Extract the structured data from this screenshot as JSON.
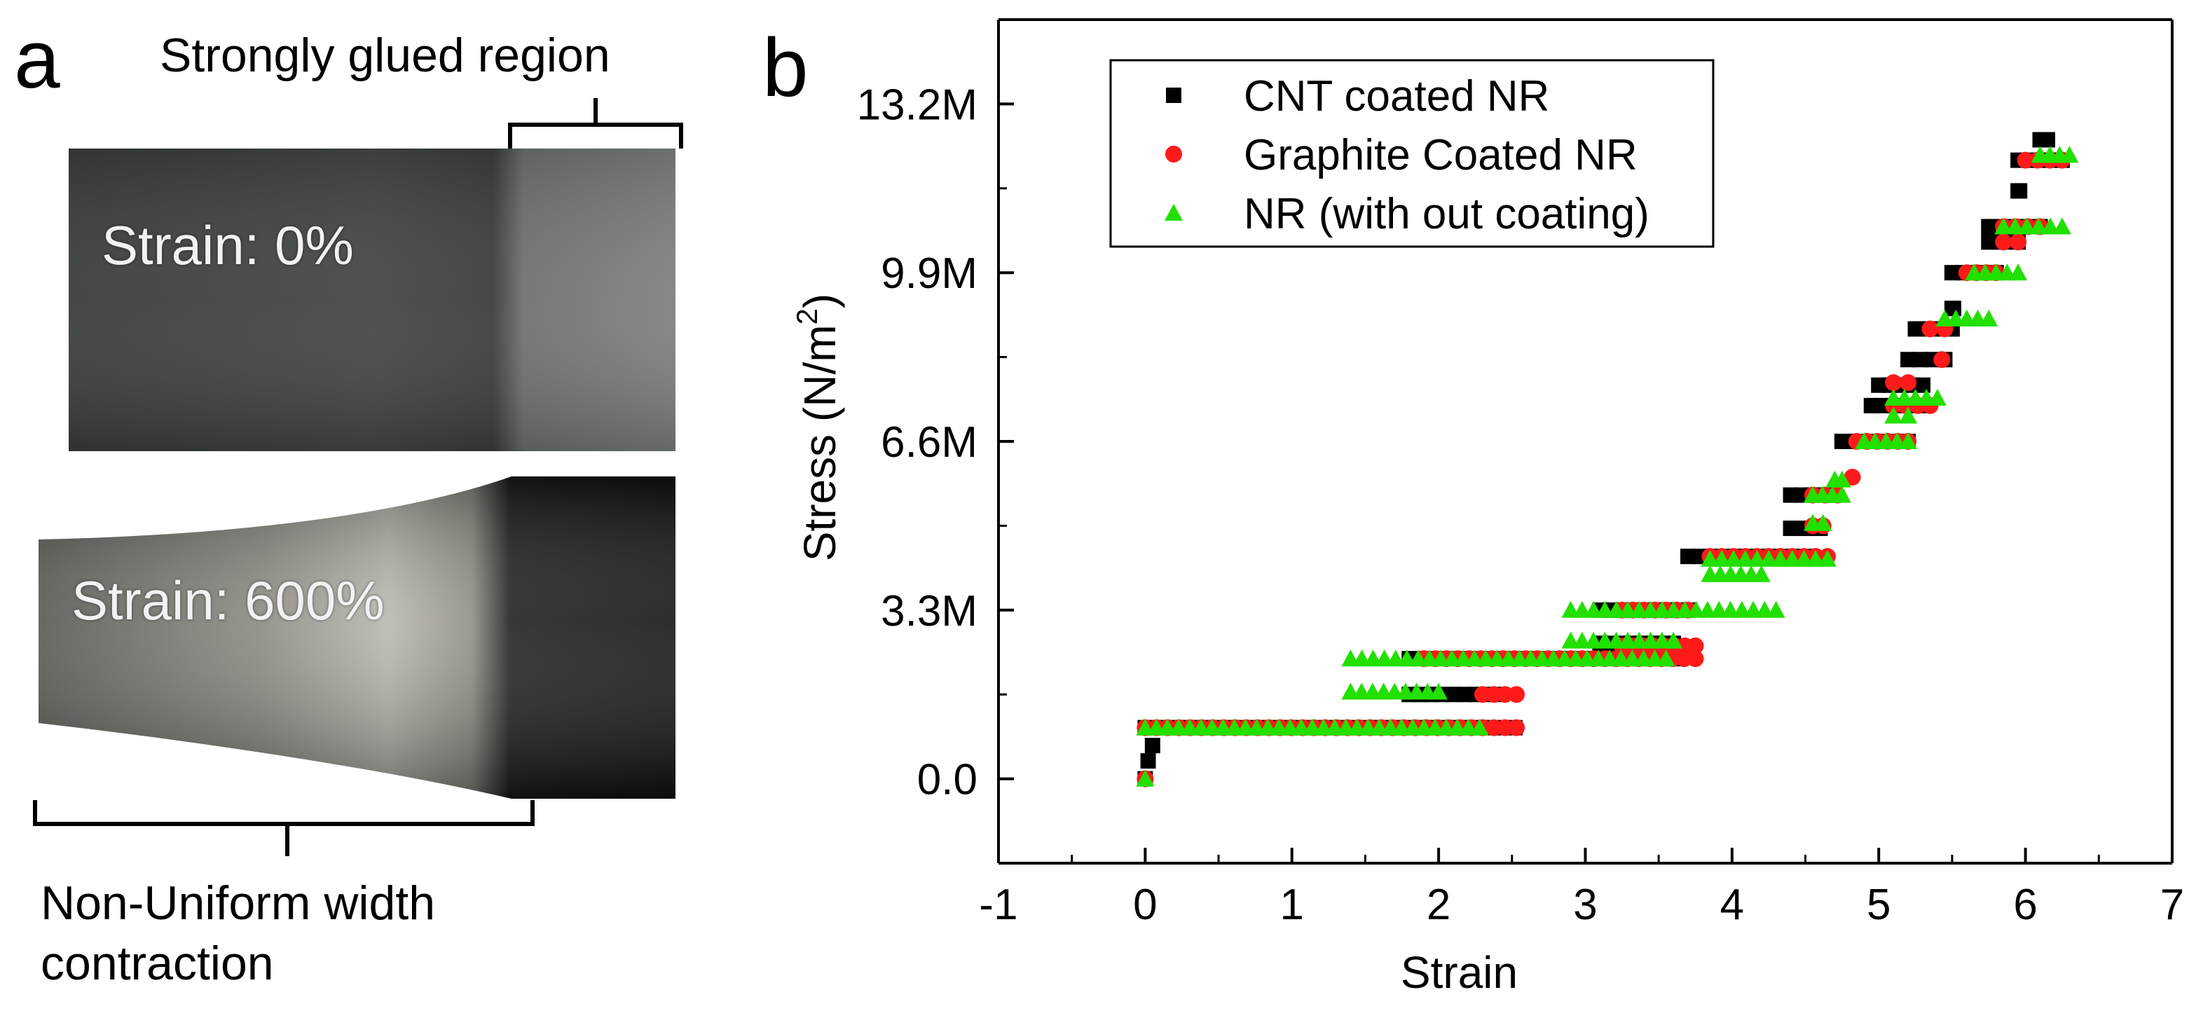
{
  "panel_a": {
    "letter": "a",
    "glued_label": "Strongly glued region",
    "strain_top": "Strain: 0%",
    "strain_bottom": "Strain: 600%",
    "caption_line1": "Non-Uniform width",
    "caption_line2": "contraction"
  },
  "panel_b": {
    "letter": "b"
  },
  "colors": {
    "cnt": "#000000",
    "graphite": "#ff1a1a",
    "nr": "#22e000",
    "axis": "#000000"
  },
  "chart_data": {
    "type": "scatter",
    "title": "",
    "xlabel": "Strain",
    "ylabel_prefix": "Stress (N/m",
    "ylabel_sup": "2",
    "ylabel_suffix": ")",
    "xlim": [
      -1,
      7
    ],
    "ylim": [
      -1650000,
      14850000
    ],
    "x_ticks": [
      -1,
      0,
      1,
      2,
      3,
      4,
      5,
      6,
      7
    ],
    "x_tick_labels": [
      "-1",
      "0",
      "1",
      "2",
      "3",
      "4",
      "5",
      "6",
      "7"
    ],
    "y_ticks": [
      0,
      3300000,
      6600000,
      9900000,
      13200000
    ],
    "y_tick_labels": [
      "0.0",
      "3.3M",
      "6.6M",
      "9.9M",
      "13.2M"
    ],
    "legend_position": "top-left",
    "series": [
      {
        "name": "CNT coated NR",
        "marker": "square",
        "color": "#000000",
        "points": [
          [
            0,
            0
          ],
          [
            0.02,
            350000
          ],
          [
            0.05,
            650000
          ]
        ],
        "segments": [
          [
            0,
            2.52,
            1000000
          ],
          [
            1.8,
            2.4,
            1650000
          ],
          [
            1.8,
            3.6,
            2350000
          ],
          [
            3.1,
            3.6,
            2650000
          ],
          [
            3.1,
            3.7,
            3300000
          ],
          [
            3.7,
            4.5,
            4350000
          ],
          [
            4.4,
            4.6,
            4900000
          ],
          [
            4.4,
            4.7,
            5550000
          ],
          [
            4.75,
            5.2,
            6600000
          ],
          [
            4.95,
            5.3,
            7300000
          ],
          [
            5.0,
            5.3,
            7700000
          ],
          [
            5.2,
            5.45,
            8200000
          ],
          [
            5.25,
            5.5,
            8800000
          ],
          [
            5.5,
            5.8,
            9900000
          ],
          [
            5.75,
            5.95,
            10500000
          ],
          [
            5.75,
            6.1,
            10800000
          ],
          [
            5.95,
            6.25,
            12100000
          ],
          [
            6.1,
            6.15,
            12500000
          ],
          [
            5.95,
            5.96,
            11500000
          ],
          [
            5.5,
            5.51,
            9200000
          ]
        ]
      },
      {
        "name": "Graphite Coated NR",
        "marker": "circle",
        "color": "#ff1a1a",
        "points": [
          [
            0,
            0
          ],
          [
            4.82,
            5900000
          ],
          [
            5.43,
            8200000
          ]
        ],
        "segments": [
          [
            0,
            2.53,
            1000000
          ],
          [
            2.3,
            2.53,
            1650000
          ],
          [
            1.9,
            3.75,
            2350000
          ],
          [
            3.25,
            3.75,
            2600000
          ],
          [
            3.25,
            3.7,
            3300000
          ],
          [
            3.85,
            4.65,
            4350000
          ],
          [
            4.55,
            4.62,
            4950000
          ],
          [
            4.55,
            4.72,
            5550000
          ],
          [
            4.85,
            5.2,
            6600000
          ],
          [
            5.1,
            5.35,
            7300000
          ],
          [
            5.1,
            5.2,
            7750000
          ],
          [
            5.35,
            5.45,
            8800000
          ],
          [
            5.6,
            5.8,
            9900000
          ],
          [
            5.85,
            5.95,
            10500000
          ],
          [
            5.85,
            6.1,
            10800000
          ],
          [
            6.0,
            6.25,
            12100000
          ]
        ]
      },
      {
        "name": "NR (with out coating)",
        "marker": "triangle",
        "color": "#22e000",
        "points": [
          [
            0,
            0
          ]
        ],
        "segments": [
          [
            0,
            2.28,
            1000000
          ],
          [
            1.4,
            2.0,
            1700000
          ],
          [
            1.4,
            3.55,
            2350000
          ],
          [
            2.9,
            3.6,
            2700000
          ],
          [
            2.9,
            4.3,
            3300000
          ],
          [
            3.85,
            4.65,
            4300000
          ],
          [
            3.85,
            4.2,
            4000000
          ],
          [
            4.55,
            4.62,
            5000000
          ],
          [
            4.55,
            4.75,
            5550000
          ],
          [
            4.7,
            4.75,
            5850000
          ],
          [
            4.9,
            5.2,
            6600000
          ],
          [
            5.1,
            5.4,
            7450000
          ],
          [
            5.1,
            5.2,
            7100000
          ],
          [
            5.45,
            5.75,
            9000000
          ],
          [
            5.65,
            5.95,
            9900000
          ],
          [
            5.85,
            6.25,
            10800000
          ],
          [
            6.1,
            6.3,
            12200000
          ]
        ]
      }
    ]
  }
}
